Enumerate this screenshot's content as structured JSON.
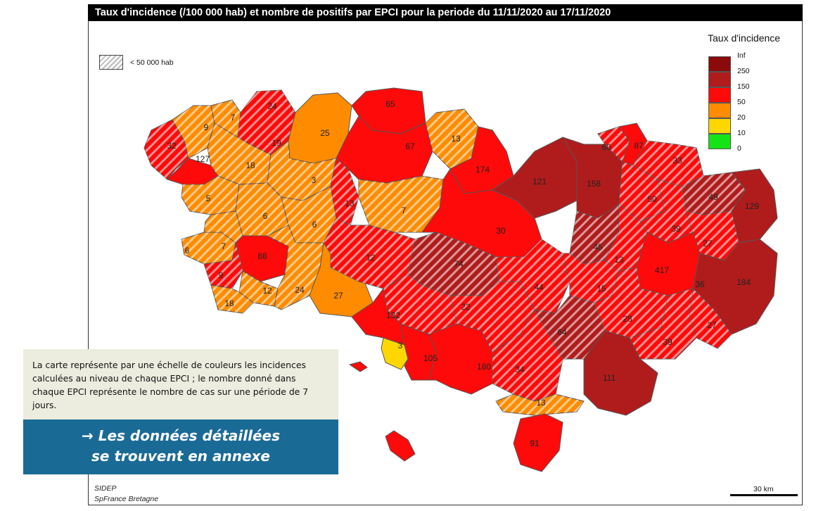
{
  "title": "Taux d'incidence (/100 000 hab) et nombre de positifs par EPCI pour la periode du 11/11/2020 au 17/11/2020",
  "legend": {
    "title": "Taux d'incidence",
    "ticks": [
      "Inf",
      "250",
      "150",
      "50",
      "20",
      "10",
      "0"
    ],
    "classes": [
      {
        "name": "250-Inf",
        "color": "#8b0a0a"
      },
      {
        "name": "150-250",
        "color": "#b01c1c"
      },
      {
        "name": "50-150",
        "color": "#ff0a0a"
      },
      {
        "name": "20-50",
        "color": "#ff8c00"
      },
      {
        "name": "10-20",
        "color": "#ffd700"
      },
      {
        "name": "0-10",
        "color": "#16e316"
      }
    ],
    "hatch_label": "< 50 000 hab"
  },
  "colors": {
    "background_land": "#ffffff",
    "outline": "#555555"
  },
  "epci_labels": [
    "32",
    "127",
    "9",
    "7",
    "24",
    "19",
    "18",
    "25",
    "5",
    "3",
    "13",
    "6",
    "6",
    "7",
    "6",
    "88",
    "9",
    "12",
    "24",
    "18",
    "27",
    "12",
    "65",
    "67",
    "13",
    "174",
    "7",
    "30",
    "121",
    "158",
    "74",
    "22",
    "44",
    "132",
    "3",
    "105",
    "180",
    "34",
    "64",
    "13",
    "91",
    "60",
    "87",
    "33",
    "50",
    "49",
    "129",
    "39",
    "27",
    "45",
    "13",
    "417",
    "15",
    "36",
    "184",
    "28",
    "27",
    "39",
    "111"
  ],
  "info_text": "La carte représente par une échelle de couleurs les incidences calculées au niveau de chaque EPCI ; le nombre donné dans chaque EPCI représente le nombre de cas sur une période de 7 jours.",
  "cta": {
    "line1": "→ Les données détaillées",
    "line2": "se trouvent en annexe"
  },
  "source": {
    "line1": "SIDEP",
    "line2": "SpFrance Bretagne"
  },
  "scale_label": "30 km"
}
